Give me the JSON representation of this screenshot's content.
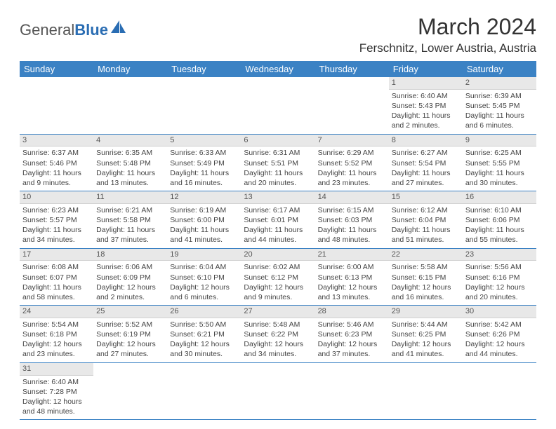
{
  "logo": {
    "text1": "General",
    "text2": "Blue"
  },
  "title": "March 2024",
  "location": "Ferschnitz, Lower Austria, Austria",
  "colors": {
    "header_bg": "#3b82c4",
    "header_text": "#ffffff",
    "daynum_bg": "#e8e8e8",
    "border": "#3b82c4",
    "logo_blue": "#2a6db3"
  },
  "days_of_week": [
    "Sunday",
    "Monday",
    "Tuesday",
    "Wednesday",
    "Thursday",
    "Friday",
    "Saturday"
  ],
  "weeks": [
    [
      null,
      null,
      null,
      null,
      null,
      {
        "n": "1",
        "sr": "Sunrise: 6:40 AM",
        "ss": "Sunset: 5:43 PM",
        "dl1": "Daylight: 11 hours",
        "dl2": "and 2 minutes."
      },
      {
        "n": "2",
        "sr": "Sunrise: 6:39 AM",
        "ss": "Sunset: 5:45 PM",
        "dl1": "Daylight: 11 hours",
        "dl2": "and 6 minutes."
      }
    ],
    [
      {
        "n": "3",
        "sr": "Sunrise: 6:37 AM",
        "ss": "Sunset: 5:46 PM",
        "dl1": "Daylight: 11 hours",
        "dl2": "and 9 minutes."
      },
      {
        "n": "4",
        "sr": "Sunrise: 6:35 AM",
        "ss": "Sunset: 5:48 PM",
        "dl1": "Daylight: 11 hours",
        "dl2": "and 13 minutes."
      },
      {
        "n": "5",
        "sr": "Sunrise: 6:33 AM",
        "ss": "Sunset: 5:49 PM",
        "dl1": "Daylight: 11 hours",
        "dl2": "and 16 minutes."
      },
      {
        "n": "6",
        "sr": "Sunrise: 6:31 AM",
        "ss": "Sunset: 5:51 PM",
        "dl1": "Daylight: 11 hours",
        "dl2": "and 20 minutes."
      },
      {
        "n": "7",
        "sr": "Sunrise: 6:29 AM",
        "ss": "Sunset: 5:52 PM",
        "dl1": "Daylight: 11 hours",
        "dl2": "and 23 minutes."
      },
      {
        "n": "8",
        "sr": "Sunrise: 6:27 AM",
        "ss": "Sunset: 5:54 PM",
        "dl1": "Daylight: 11 hours",
        "dl2": "and 27 minutes."
      },
      {
        "n": "9",
        "sr": "Sunrise: 6:25 AM",
        "ss": "Sunset: 5:55 PM",
        "dl1": "Daylight: 11 hours",
        "dl2": "and 30 minutes."
      }
    ],
    [
      {
        "n": "10",
        "sr": "Sunrise: 6:23 AM",
        "ss": "Sunset: 5:57 PM",
        "dl1": "Daylight: 11 hours",
        "dl2": "and 34 minutes."
      },
      {
        "n": "11",
        "sr": "Sunrise: 6:21 AM",
        "ss": "Sunset: 5:58 PM",
        "dl1": "Daylight: 11 hours",
        "dl2": "and 37 minutes."
      },
      {
        "n": "12",
        "sr": "Sunrise: 6:19 AM",
        "ss": "Sunset: 6:00 PM",
        "dl1": "Daylight: 11 hours",
        "dl2": "and 41 minutes."
      },
      {
        "n": "13",
        "sr": "Sunrise: 6:17 AM",
        "ss": "Sunset: 6:01 PM",
        "dl1": "Daylight: 11 hours",
        "dl2": "and 44 minutes."
      },
      {
        "n": "14",
        "sr": "Sunrise: 6:15 AM",
        "ss": "Sunset: 6:03 PM",
        "dl1": "Daylight: 11 hours",
        "dl2": "and 48 minutes."
      },
      {
        "n": "15",
        "sr": "Sunrise: 6:12 AM",
        "ss": "Sunset: 6:04 PM",
        "dl1": "Daylight: 11 hours",
        "dl2": "and 51 minutes."
      },
      {
        "n": "16",
        "sr": "Sunrise: 6:10 AM",
        "ss": "Sunset: 6:06 PM",
        "dl1": "Daylight: 11 hours",
        "dl2": "and 55 minutes."
      }
    ],
    [
      {
        "n": "17",
        "sr": "Sunrise: 6:08 AM",
        "ss": "Sunset: 6:07 PM",
        "dl1": "Daylight: 11 hours",
        "dl2": "and 58 minutes."
      },
      {
        "n": "18",
        "sr": "Sunrise: 6:06 AM",
        "ss": "Sunset: 6:09 PM",
        "dl1": "Daylight: 12 hours",
        "dl2": "and 2 minutes."
      },
      {
        "n": "19",
        "sr": "Sunrise: 6:04 AM",
        "ss": "Sunset: 6:10 PM",
        "dl1": "Daylight: 12 hours",
        "dl2": "and 6 minutes."
      },
      {
        "n": "20",
        "sr": "Sunrise: 6:02 AM",
        "ss": "Sunset: 6:12 PM",
        "dl1": "Daylight: 12 hours",
        "dl2": "and 9 minutes."
      },
      {
        "n": "21",
        "sr": "Sunrise: 6:00 AM",
        "ss": "Sunset: 6:13 PM",
        "dl1": "Daylight: 12 hours",
        "dl2": "and 13 minutes."
      },
      {
        "n": "22",
        "sr": "Sunrise: 5:58 AM",
        "ss": "Sunset: 6:15 PM",
        "dl1": "Daylight: 12 hours",
        "dl2": "and 16 minutes."
      },
      {
        "n": "23",
        "sr": "Sunrise: 5:56 AM",
        "ss": "Sunset: 6:16 PM",
        "dl1": "Daylight: 12 hours",
        "dl2": "and 20 minutes."
      }
    ],
    [
      {
        "n": "24",
        "sr": "Sunrise: 5:54 AM",
        "ss": "Sunset: 6:18 PM",
        "dl1": "Daylight: 12 hours",
        "dl2": "and 23 minutes."
      },
      {
        "n": "25",
        "sr": "Sunrise: 5:52 AM",
        "ss": "Sunset: 6:19 PM",
        "dl1": "Daylight: 12 hours",
        "dl2": "and 27 minutes."
      },
      {
        "n": "26",
        "sr": "Sunrise: 5:50 AM",
        "ss": "Sunset: 6:21 PM",
        "dl1": "Daylight: 12 hours",
        "dl2": "and 30 minutes."
      },
      {
        "n": "27",
        "sr": "Sunrise: 5:48 AM",
        "ss": "Sunset: 6:22 PM",
        "dl1": "Daylight: 12 hours",
        "dl2": "and 34 minutes."
      },
      {
        "n": "28",
        "sr": "Sunrise: 5:46 AM",
        "ss": "Sunset: 6:23 PM",
        "dl1": "Daylight: 12 hours",
        "dl2": "and 37 minutes."
      },
      {
        "n": "29",
        "sr": "Sunrise: 5:44 AM",
        "ss": "Sunset: 6:25 PM",
        "dl1": "Daylight: 12 hours",
        "dl2": "and 41 minutes."
      },
      {
        "n": "30",
        "sr": "Sunrise: 5:42 AM",
        "ss": "Sunset: 6:26 PM",
        "dl1": "Daylight: 12 hours",
        "dl2": "and 44 minutes."
      }
    ],
    [
      {
        "n": "31",
        "sr": "Sunrise: 6:40 AM",
        "ss": "Sunset: 7:28 PM",
        "dl1": "Daylight: 12 hours",
        "dl2": "and 48 minutes."
      },
      null,
      null,
      null,
      null,
      null,
      null
    ]
  ]
}
